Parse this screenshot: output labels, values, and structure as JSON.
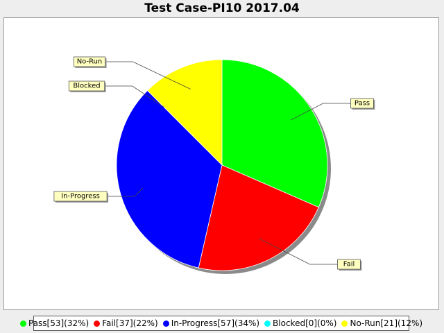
{
  "chart_data": {
    "type": "pie",
    "title": "Test Case-PI10 2017.04",
    "slices": [
      {
        "label": "Pass",
        "value": 53,
        "percent": 32,
        "color": "#00ff00",
        "legend": "Pass[53](32%)"
      },
      {
        "label": "Fail",
        "value": 37,
        "percent": 22,
        "color": "#ff0000",
        "legend": "Fail[37](22%)"
      },
      {
        "label": "In-Progress",
        "value": 57,
        "percent": 34,
        "color": "#0000ff",
        "legend": "In-Progress[57](34%)"
      },
      {
        "label": "Blocked",
        "value": 0,
        "percent": 0,
        "color": "#00ffff",
        "legend": "Blocked[0](0%)"
      },
      {
        "label": "No-Run",
        "value": 21,
        "percent": 12,
        "color": "#ffff00",
        "legend": "No-Run[21](12%)"
      }
    ],
    "legend_position": "bottom"
  }
}
